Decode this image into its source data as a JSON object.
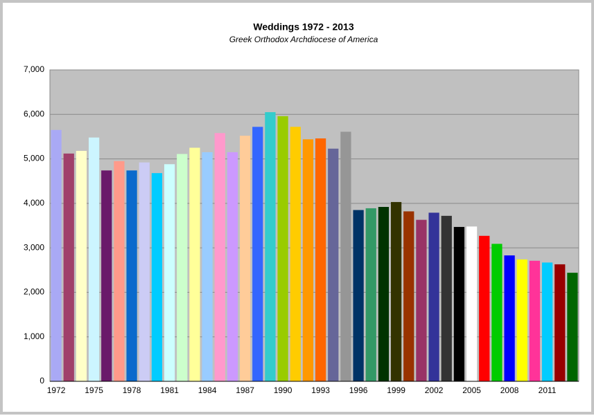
{
  "chart_data": {
    "type": "bar",
    "title": "Weddings 1972 - 2013",
    "subtitle": "Greek Orthodox Archdiocese of America",
    "categories": [
      "1972",
      null,
      null,
      "1975",
      null,
      null,
      "1978",
      null,
      null,
      "1981",
      null,
      null,
      "1984",
      null,
      null,
      "1987",
      null,
      null,
      "1990",
      null,
      null,
      "1993",
      null,
      null,
      "1996",
      null,
      null,
      "1999",
      null,
      null,
      "2002",
      null,
      null,
      "2005",
      null,
      null,
      "2008",
      null,
      null,
      "2011",
      null,
      null
    ],
    "values": [
      5650,
      5120,
      5180,
      5480,
      4740,
      4950,
      4740,
      4920,
      4680,
      4880,
      5110,
      5250,
      5150,
      5580,
      5150,
      5520,
      5720,
      6050,
      5960,
      5720,
      5440,
      5460,
      5230,
      5610,
      3850,
      3890,
      3920,
      4030,
      3820,
      3630,
      3790,
      3720,
      3470,
      3480,
      3270,
      3090,
      2830,
      2740,
      2710,
      2670,
      2630,
      2440
    ],
    "colors": [
      "#a9a9f5",
      "#a0406a",
      "#ffffc8",
      "#ccf5ff",
      "#6a1a6a",
      "#ff9a8a",
      "#0a6acc",
      "#ccccf5",
      "#00ccff",
      "#ccffff",
      "#ccffcc",
      "#ffff99",
      "#99ccff",
      "#ff99cc",
      "#cc99ff",
      "#ffcc99",
      "#3366ff",
      "#33cccc",
      "#99cc00",
      "#ffcc00",
      "#ff9900",
      "#ff6600",
      "#666699",
      "#969696",
      "#003366",
      "#339966",
      "#003300",
      "#333300",
      "#993300",
      "#993366",
      "#333399",
      "#333333",
      "#000000",
      "#ffffff",
      "#ff0000",
      "#00cc00",
      "#0000ff",
      "#ffff00",
      "#ff3399",
      "#00ccff",
      "#990000",
      "#006600"
    ],
    "ylim": [
      0,
      7000
    ],
    "yticks": [
      0,
      {
        "value": 1000,
        "label": "1,000"
      },
      {
        "value": 2000,
        "label": "2,000"
      },
      {
        "value": 3000,
        "label": "3,000"
      },
      {
        "value": 4000,
        "label": "4,000"
      },
      {
        "value": 5000,
        "label": "5,000"
      },
      {
        "value": 6000,
        "label": "6,000"
      },
      {
        "value": 7000,
        "label": "7,000"
      }
    ],
    "grid": true
  }
}
